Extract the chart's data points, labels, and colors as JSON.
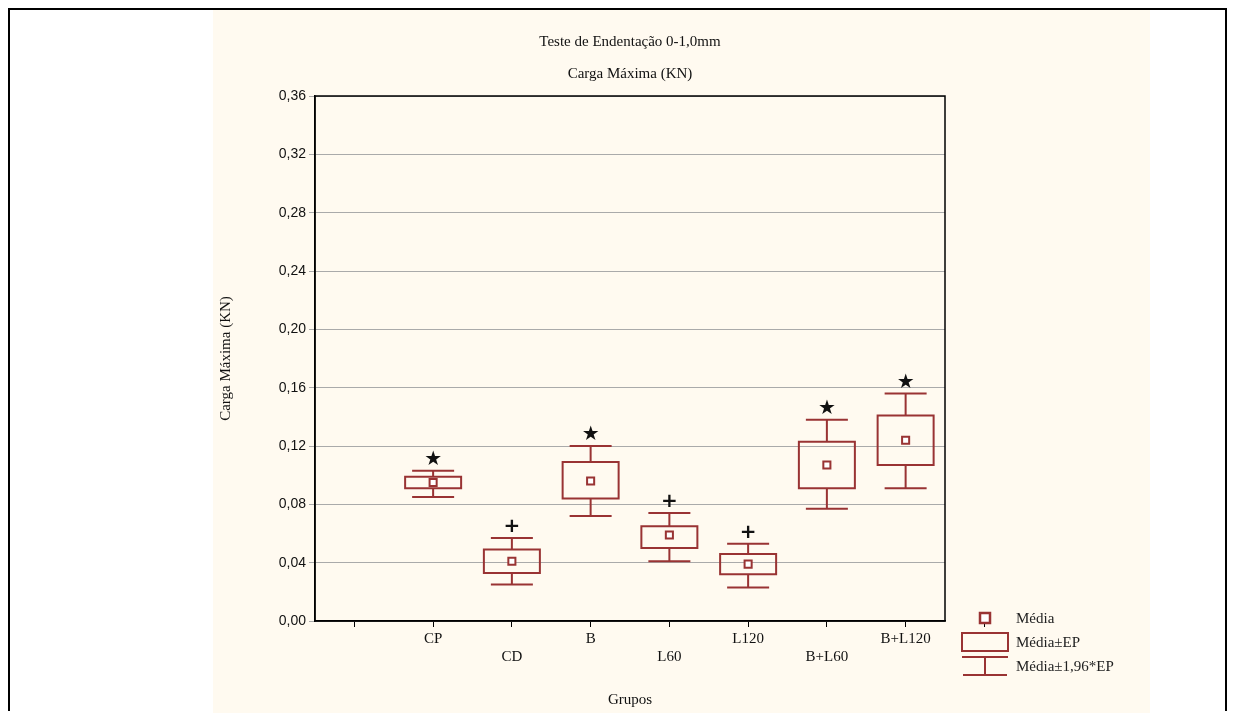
{
  "chart_data": {
    "type": "box",
    "title": "Teste de Endentação 0-1,0mm",
    "subtitle": "Carga Máxima (KN)",
    "xlabel": "Grupos",
    "ylabel": "Carga Máxima (KN)",
    "categories": [
      "CP",
      "CD",
      "B",
      "L60",
      "L120",
      "B+L60",
      "B+L120"
    ],
    "series": [
      {
        "color": "#993333",
        "boxes": [
          {
            "low": 0.085,
            "q1": 0.091,
            "mean": 0.095,
            "q3": 0.099,
            "high": 0.103
          },
          {
            "low": 0.025,
            "q1": 0.033,
            "mean": 0.041,
            "q3": 0.049,
            "high": 0.057
          },
          {
            "low": 0.072,
            "q1": 0.084,
            "mean": 0.096,
            "q3": 0.109,
            "high": 0.12
          },
          {
            "low": 0.041,
            "q1": 0.05,
            "mean": 0.059,
            "q3": 0.065,
            "high": 0.074
          },
          {
            "low": 0.023,
            "q1": 0.032,
            "mean": 0.039,
            "q3": 0.046,
            "high": 0.053
          },
          {
            "low": 0.077,
            "q1": 0.091,
            "mean": 0.107,
            "q3": 0.123,
            "high": 0.138
          },
          {
            "low": 0.091,
            "q1": 0.107,
            "mean": 0.124,
            "q3": 0.141,
            "high": 0.156
          }
        ]
      }
    ],
    "ylim": [
      0,
      0.36
    ],
    "yticks": [
      {
        "value": 0,
        "label": "0,00"
      },
      {
        "value": 0.04,
        "label": "0,04"
      },
      {
        "value": 0.08,
        "label": "0,08"
      },
      {
        "value": 0.12,
        "label": "0,12"
      },
      {
        "value": 0.16,
        "label": "0,16"
      },
      {
        "value": 0.2,
        "label": "0,20"
      },
      {
        "value": 0.24,
        "label": "0,24"
      },
      {
        "value": 0.28,
        "label": "0,28"
      },
      {
        "value": 0.32,
        "label": "0,32"
      },
      {
        "value": 0.36,
        "label": "0,36"
      }
    ],
    "grid": "y",
    "marker": "square",
    "annotations": [
      "★",
      "+",
      "★",
      "+",
      "+",
      "★",
      "★",
      "Média",
      "Média±EP",
      "Média±1,96*EP"
    ]
  }
}
